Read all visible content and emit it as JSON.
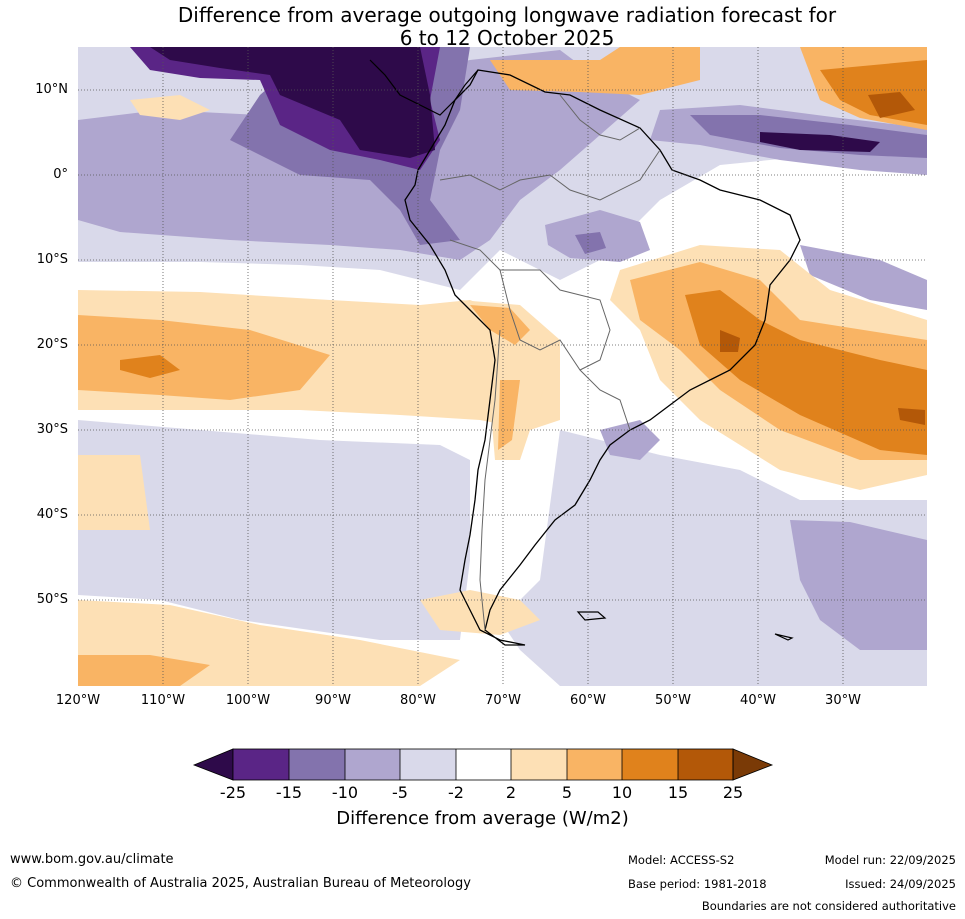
{
  "title": {
    "line1": "Difference from average outgoing longwave radiation forecast for",
    "line2": "6 to 12 October 2025"
  },
  "map": {
    "region": "South America and surrounding oceans",
    "lat_labels": [
      "10°N",
      "0°",
      "10°S",
      "20°S",
      "30°S",
      "40°S",
      "50°S"
    ],
    "lon_labels": [
      "120°W",
      "110°W",
      "100°W",
      "90°W",
      "80°W",
      "70°W",
      "60°W",
      "50°W",
      "40°W",
      "30°W"
    ]
  },
  "colorbar": {
    "label": "Difference from average (W/m2)",
    "ticks": [
      "-25",
      "-15",
      "-10",
      "-5",
      "-2",
      "2",
      "5",
      "10",
      "15",
      "25"
    ],
    "colors": {
      "lt_-25": "#2e0a4a",
      "-25_-15": "#5a2586",
      "-15_-10": "#8373ad",
      "-10_-5": "#afa6cf",
      "-5_-2": "#d9d9ea",
      "-2_2": "#ffffff",
      "2_5": "#fde0b5",
      "5_10": "#f9b464",
      "10_15": "#e0821c",
      "15_25": "#b35808",
      "gt_25": "#7a3a06"
    }
  },
  "footer": {
    "website": "www.bom.gov.au/climate",
    "copyright": "© Commonwealth of Australia 2025, Australian Bureau of Meteorology",
    "model": "Model: ACCESS-S2",
    "base_period": "Base period: 1981-2018",
    "model_run": "Model run: 22/09/2025",
    "issued": "Issued: 24/09/2025",
    "disclaimer": "Boundaries are not considered authoritative"
  }
}
